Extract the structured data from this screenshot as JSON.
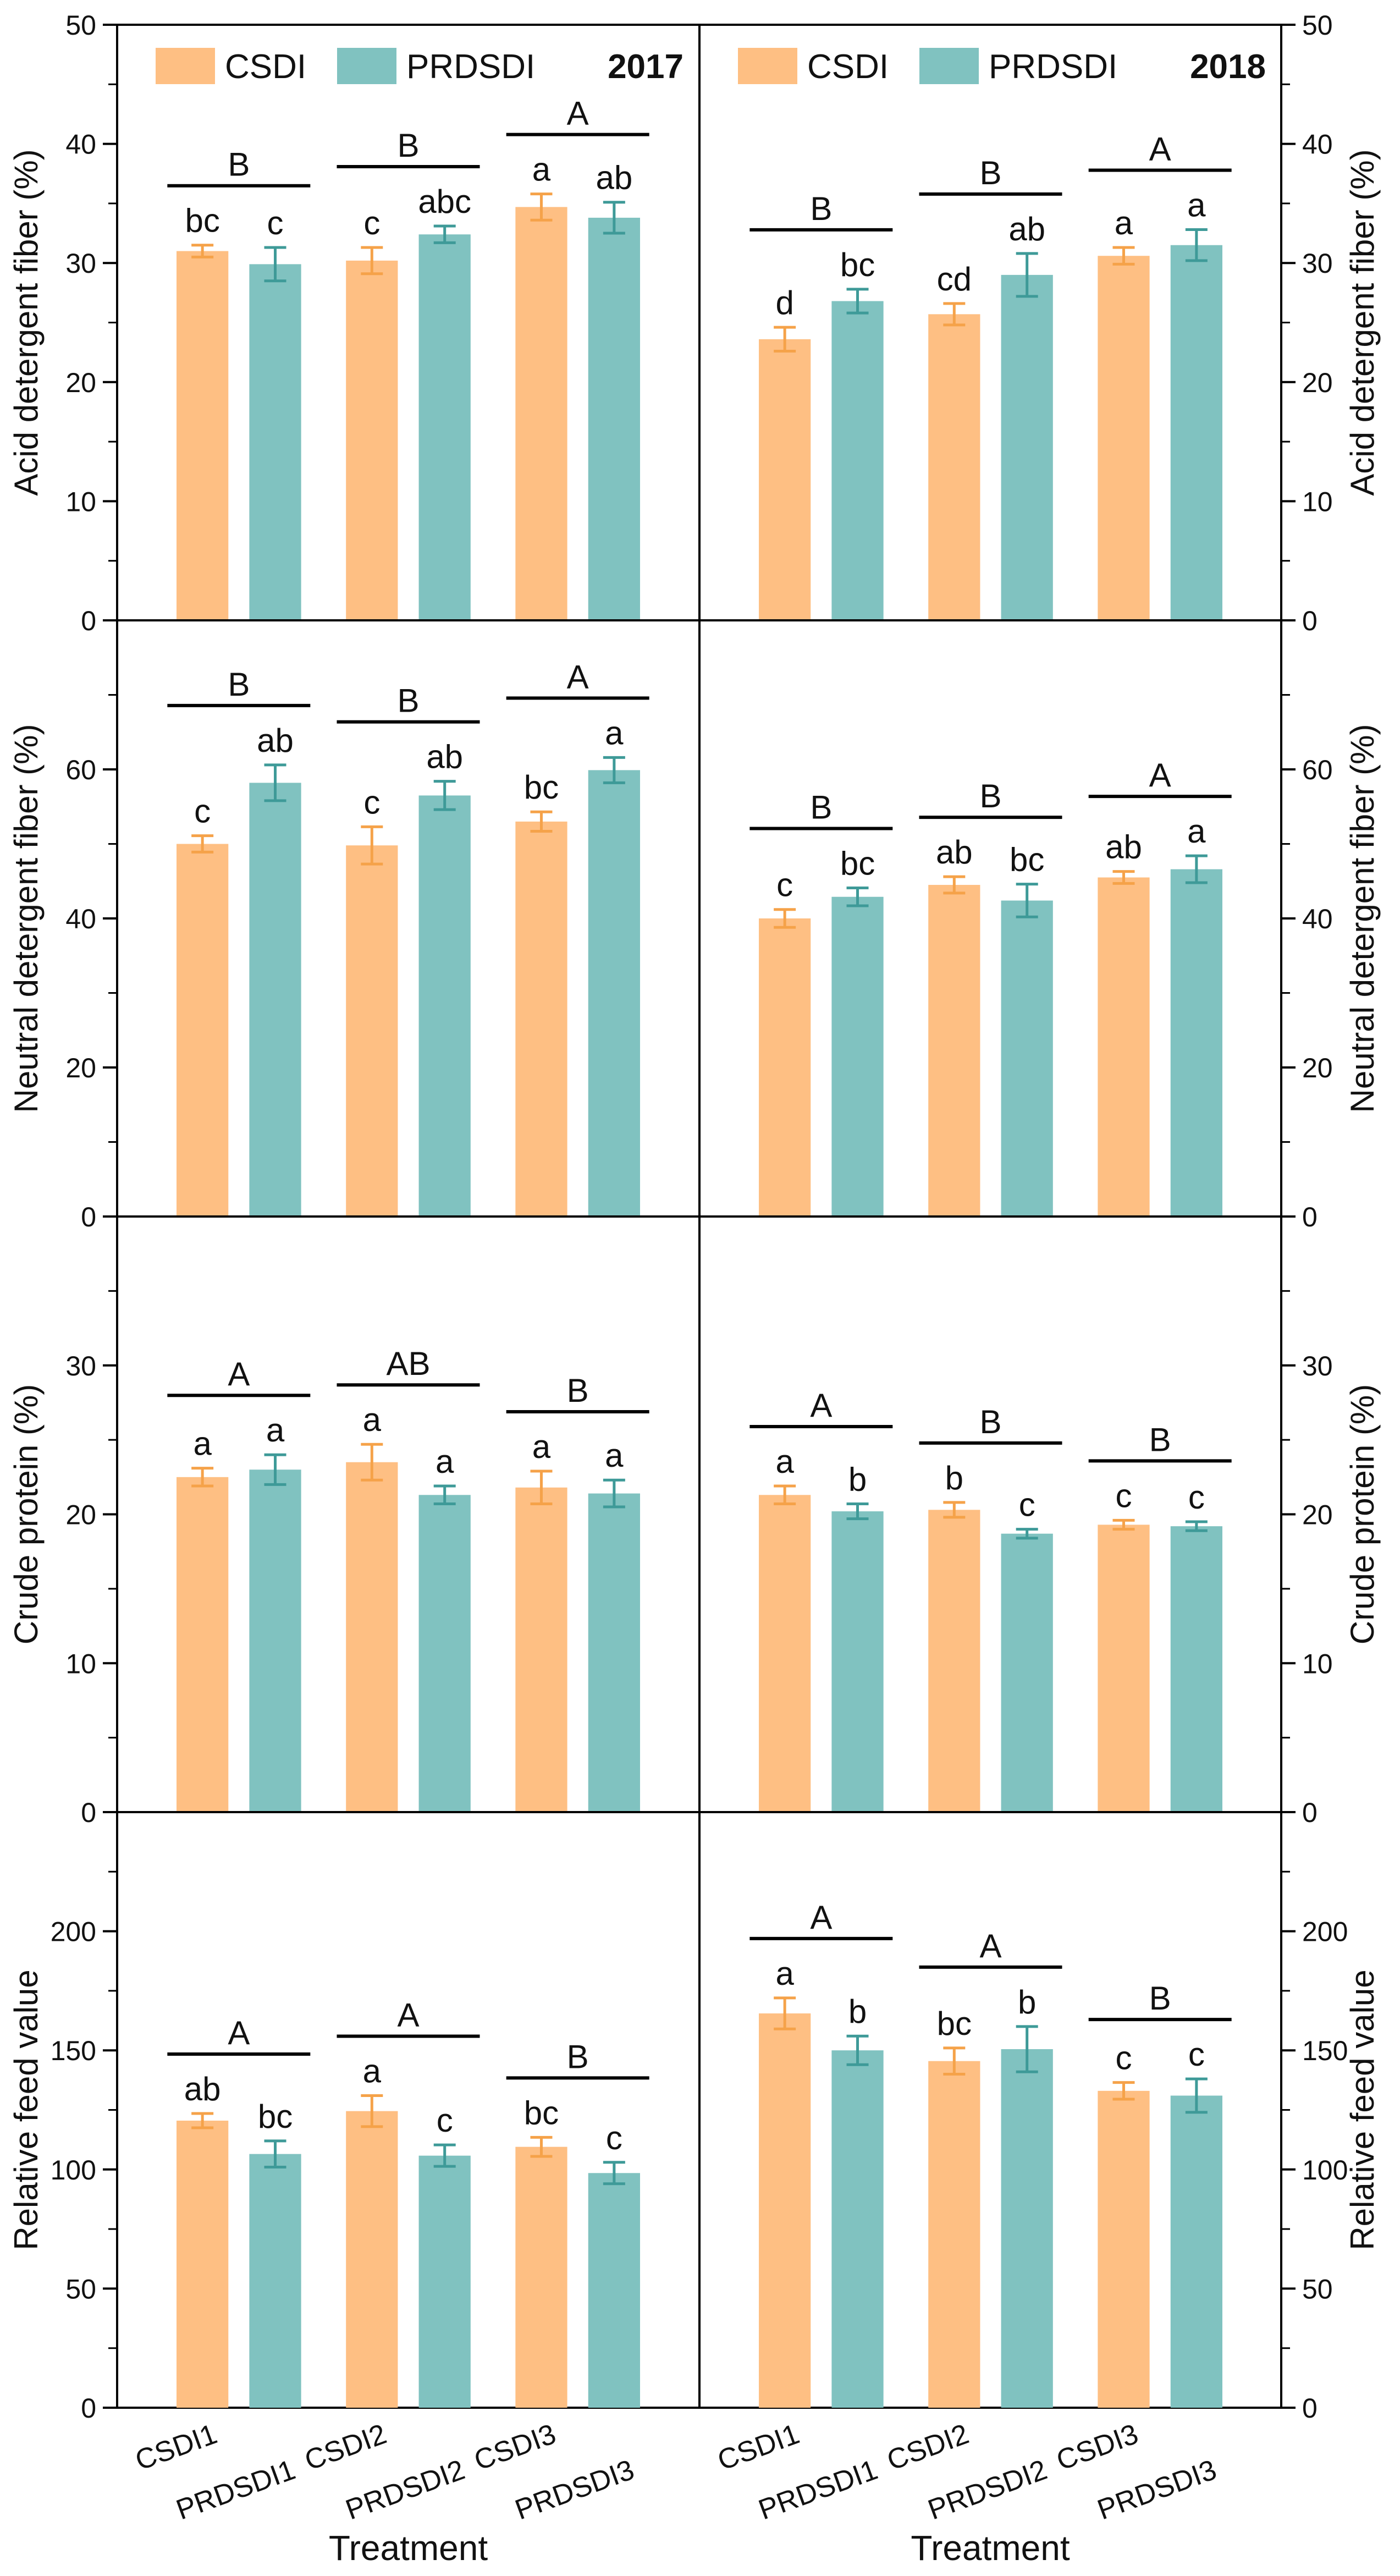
{
  "figure": {
    "xlabel": "Treatment",
    "legend": {
      "csdi_label": "CSDI",
      "prdsdi_label": "PRDSDI"
    },
    "colors": {
      "csdi": "#FEBF83",
      "prdsdi": "#80C2C0",
      "csdi_err": "#F5A249",
      "prdsdi_err": "#3E9A98",
      "axis": "#000000"
    },
    "xtick_labels": {
      "csdi": [
        "CSDI1",
        "CSDI2",
        "CSDI3"
      ],
      "prdsdi": [
        "PRDSDI1",
        "PRDSDI2",
        "PRDSDI3"
      ]
    },
    "columns": [
      {
        "year": "2017",
        "y_side": "left"
      },
      {
        "year": "2018",
        "y_side": "right"
      }
    ],
    "rows": [
      {
        "ylabel": "Acid detergent fiber (%)"
      },
      {
        "ylabel": "Neutral detergent fiber (%)"
      },
      {
        "ylabel": "Crude protein (%)"
      },
      {
        "ylabel": "Relative feed value"
      }
    ]
  },
  "chart_data": [
    {
      "type": "bar",
      "year": "2017",
      "ylabel": "Acid detergent fiber (%)",
      "ylim": [
        0,
        50
      ],
      "yticks": [
        0,
        10,
        20,
        30,
        40,
        50
      ],
      "minor_step": 5,
      "categories": [
        "1",
        "2",
        "3"
      ],
      "series": [
        {
          "name": "CSDI",
          "values": [
            31.0,
            30.2,
            34.7
          ],
          "errors": [
            0.5,
            1.1,
            1.1
          ],
          "letters": [
            "bc",
            "c",
            "a"
          ]
        },
        {
          "name": "PRDSDI",
          "values": [
            29.9,
            32.4,
            33.8
          ],
          "errors": [
            1.4,
            0.7,
            1.3
          ],
          "letters": [
            "c",
            "abc",
            "ab"
          ]
        }
      ],
      "group_letters": [
        "B",
        "B",
        "A"
      ]
    },
    {
      "type": "bar",
      "year": "2018",
      "ylabel": "Acid detergent fiber (%)",
      "ylim": [
        0,
        50
      ],
      "yticks": [
        0,
        10,
        20,
        30,
        40,
        50
      ],
      "minor_step": 5,
      "categories": [
        "1",
        "2",
        "3"
      ],
      "series": [
        {
          "name": "CSDI",
          "values": [
            23.6,
            25.7,
            30.6
          ],
          "errors": [
            1.0,
            0.9,
            0.7
          ],
          "letters": [
            "d",
            "cd",
            "a"
          ]
        },
        {
          "name": "PRDSDI",
          "values": [
            26.8,
            29.0,
            31.5
          ],
          "errors": [
            1.0,
            1.8,
            1.3
          ],
          "letters": [
            "bc",
            "ab",
            "a"
          ]
        }
      ],
      "group_letters": [
        "B",
        "B",
        "A"
      ]
    },
    {
      "type": "bar",
      "year": "2017",
      "ylabel": "Neutral detergent fiber (%)",
      "ylim": [
        0,
        80
      ],
      "yticks": [
        0,
        20,
        40,
        60
      ],
      "minor_step": 10,
      "categories": [
        "1",
        "2",
        "3"
      ],
      "series": [
        {
          "name": "CSDI",
          "values": [
            50.0,
            49.8,
            53.0
          ],
          "errors": [
            1.1,
            2.5,
            1.3
          ],
          "letters": [
            "c",
            "c",
            "bc"
          ]
        },
        {
          "name": "PRDSDI",
          "values": [
            58.2,
            56.5,
            59.9
          ],
          "errors": [
            2.4,
            1.9,
            1.7
          ],
          "letters": [
            "ab",
            "ab",
            "a"
          ]
        }
      ],
      "group_letters": [
        "B",
        "B",
        "A"
      ]
    },
    {
      "type": "bar",
      "year": "2018",
      "ylabel": "Neutral detergent fiber (%)",
      "ylim": [
        0,
        80
      ],
      "yticks": [
        0,
        20,
        40,
        60
      ],
      "minor_step": 10,
      "categories": [
        "1",
        "2",
        "3"
      ],
      "series": [
        {
          "name": "CSDI",
          "values": [
            40.0,
            44.5,
            45.5
          ],
          "errors": [
            1.2,
            1.1,
            0.8
          ],
          "letters": [
            "c",
            "ab",
            "ab"
          ]
        },
        {
          "name": "PRDSDI",
          "values": [
            42.9,
            42.4,
            46.6
          ],
          "errors": [
            1.2,
            2.2,
            1.8
          ],
          "letters": [
            "bc",
            "bc",
            "a"
          ]
        }
      ],
      "group_letters": [
        "B",
        "B",
        "A"
      ]
    },
    {
      "type": "bar",
      "year": "2017",
      "ylabel": "Crude protein (%)",
      "ylim": [
        0,
        40
      ],
      "yticks": [
        0,
        10,
        20,
        30
      ],
      "minor_step": 5,
      "categories": [
        "1",
        "2",
        "3"
      ],
      "series": [
        {
          "name": "CSDI",
          "values": [
            22.5,
            23.5,
            21.8
          ],
          "errors": [
            0.6,
            1.2,
            1.1
          ],
          "letters": [
            "a",
            "a",
            "a"
          ]
        },
        {
          "name": "PRDSDI",
          "values": [
            23.0,
            21.3,
            21.4
          ],
          "errors": [
            1.0,
            0.6,
            0.9
          ],
          "letters": [
            "a",
            "a",
            "a"
          ]
        }
      ],
      "group_letters": [
        "A",
        "AB",
        "B"
      ]
    },
    {
      "type": "bar",
      "year": "2018",
      "ylabel": "Crude protein (%)",
      "ylim": [
        0,
        40
      ],
      "yticks": [
        0,
        10,
        20,
        30
      ],
      "minor_step": 5,
      "categories": [
        "1",
        "2",
        "3"
      ],
      "series": [
        {
          "name": "CSDI",
          "values": [
            21.3,
            20.3,
            19.3
          ],
          "errors": [
            0.6,
            0.5,
            0.3
          ],
          "letters": [
            "a",
            "b",
            "c"
          ]
        },
        {
          "name": "PRDSDI",
          "values": [
            20.2,
            18.7,
            19.2
          ],
          "errors": [
            0.5,
            0.3,
            0.3
          ],
          "letters": [
            "b",
            "c",
            "c"
          ]
        }
      ],
      "group_letters": [
        "A",
        "B",
        "B"
      ]
    },
    {
      "type": "bar",
      "year": "2017",
      "ylabel": "Relative feed value",
      "ylim": [
        0,
        250
      ],
      "yticks": [
        0,
        50,
        100,
        150,
        200
      ],
      "minor_step": 25,
      "categories": [
        "1",
        "2",
        "3"
      ],
      "series": [
        {
          "name": "CSDI",
          "values": [
            120.5,
            124.5,
            109.5
          ],
          "errors": [
            3.0,
            6.5,
            4.0
          ],
          "letters": [
            "ab",
            "a",
            "bc"
          ]
        },
        {
          "name": "PRDSDI",
          "values": [
            106.5,
            105.8,
            98.5
          ],
          "errors": [
            5.5,
            4.5,
            4.5
          ],
          "letters": [
            "bc",
            "c",
            "c"
          ]
        }
      ],
      "group_letters": [
        "A",
        "A",
        "B"
      ]
    },
    {
      "type": "bar",
      "year": "2018",
      "ylabel": "Relative feed value",
      "ylim": [
        0,
        250
      ],
      "yticks": [
        0,
        50,
        100,
        150,
        200
      ],
      "minor_step": 25,
      "categories": [
        "1",
        "2",
        "3"
      ],
      "series": [
        {
          "name": "CSDI",
          "values": [
            165.5,
            145.5,
            133.0
          ],
          "errors": [
            6.5,
            5.5,
            3.5
          ],
          "letters": [
            "a",
            "bc",
            "c"
          ]
        },
        {
          "name": "PRDSDI",
          "values": [
            150.0,
            150.5,
            131.0
          ],
          "errors": [
            6.0,
            9.5,
            7.0
          ],
          "letters": [
            "b",
            "b",
            "c"
          ]
        }
      ],
      "group_letters": [
        "A",
        "A",
        "B"
      ]
    }
  ]
}
